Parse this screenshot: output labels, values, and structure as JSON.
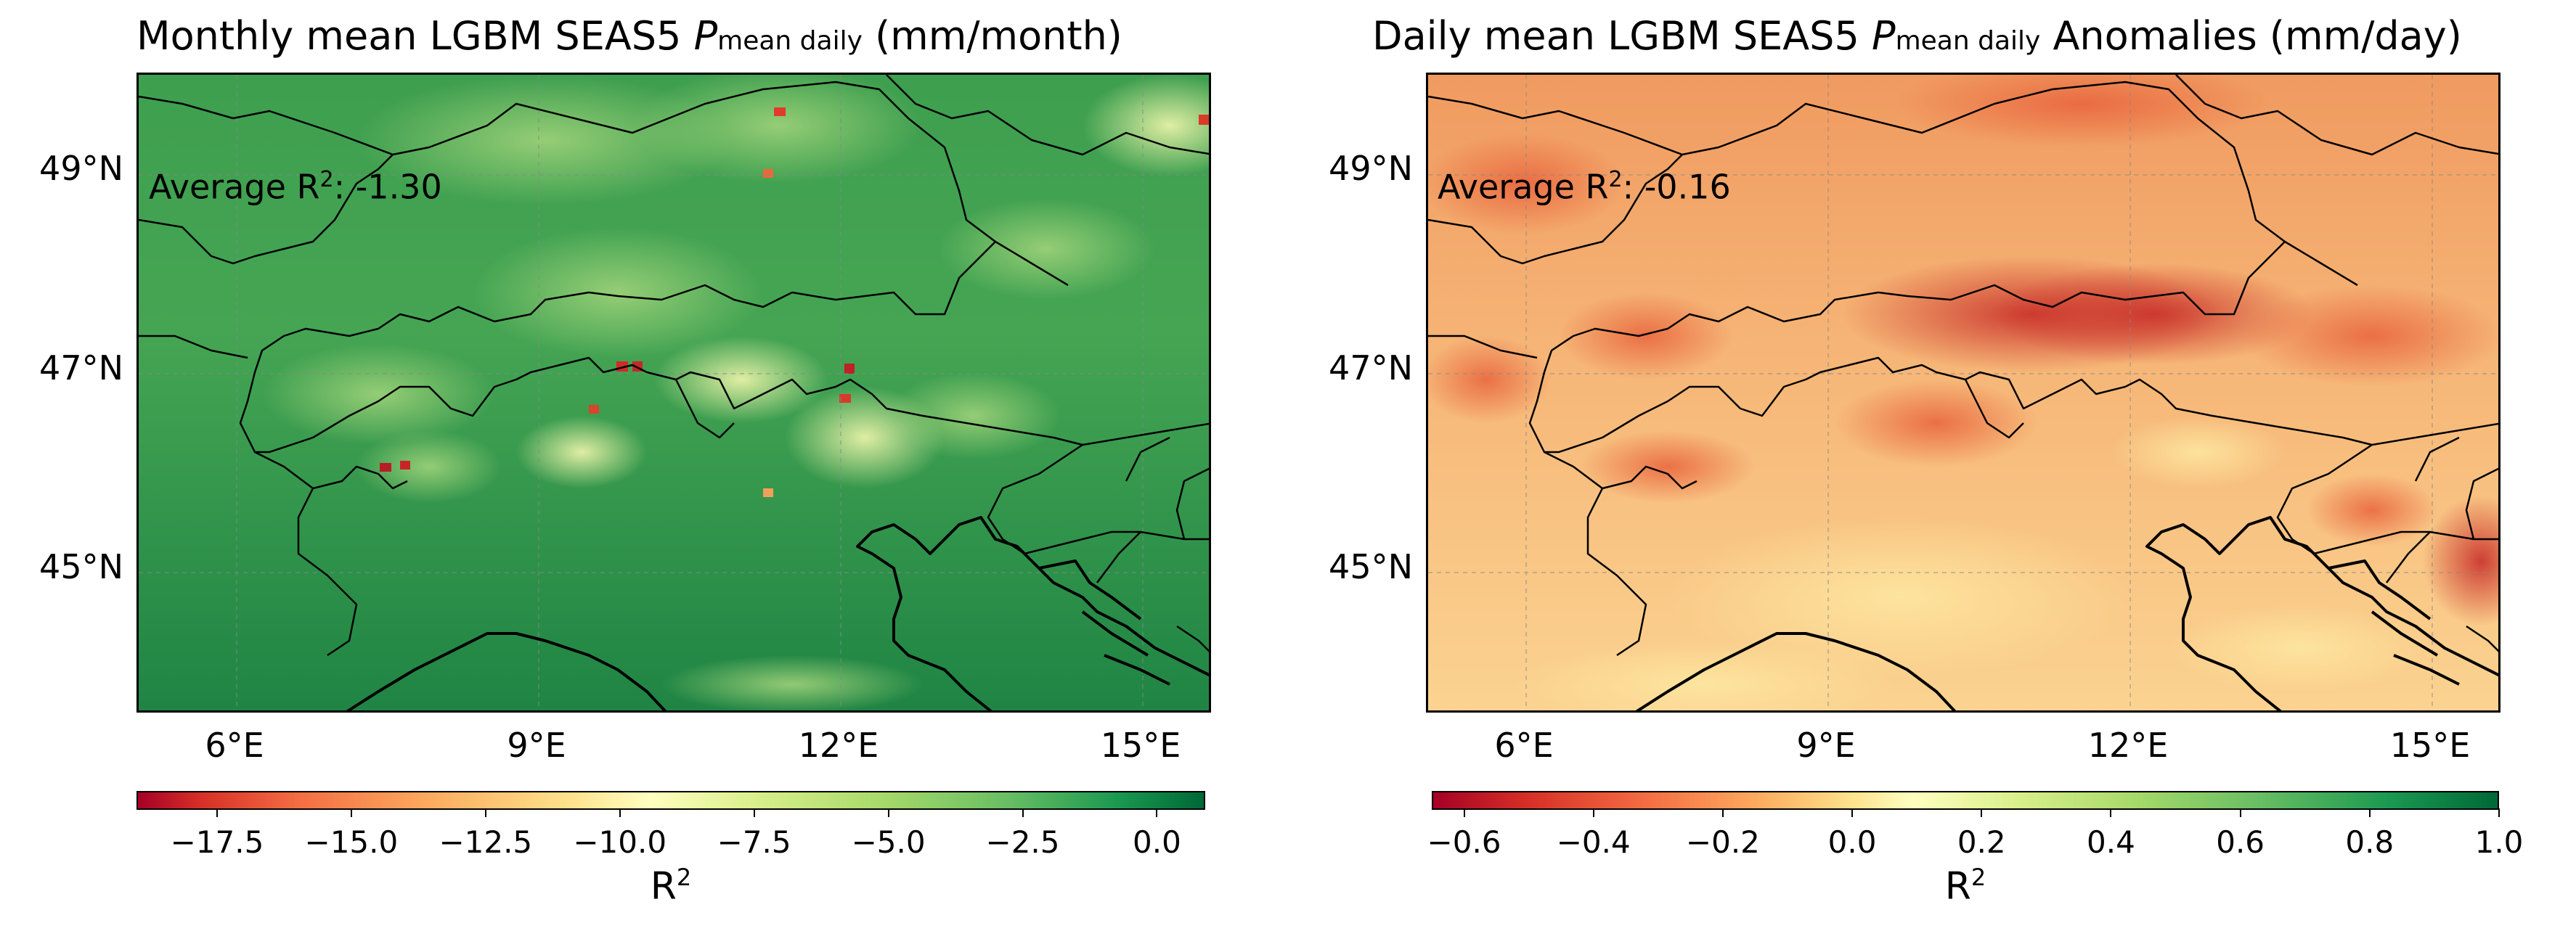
{
  "panels": [
    {
      "title_prefix": "Monthly mean LGBM SEAS5 ",
      "title_var": "P",
      "title_sub": "mean daily",
      "title_suffix": " (mm/month)",
      "avg_prefix": "Average R",
      "avg_sup": "2",
      "avg_value": ": -1.30",
      "colorbar": {
        "label": "R",
        "label_sup": "2",
        "min": -19.0,
        "max": 0.9,
        "ticks": [
          "−17.5",
          "−15.0",
          "−12.5",
          "−10.0",
          "−7.5",
          "−5.0",
          "−2.5",
          "0.0"
        ],
        "tick_values": [
          -17.5,
          -15.0,
          -12.5,
          -10.0,
          -7.5,
          -5.0,
          -2.5,
          0.0
        ],
        "colormap": "RdYlGn"
      }
    },
    {
      "title_prefix": "Daily mean LGBM SEAS5 ",
      "title_var": "P",
      "title_sub": "mean daily",
      "title_suffix": " Anomalies (mm/day)",
      "avg_prefix": "Average R",
      "avg_sup": "2",
      "avg_value": ": -0.16",
      "colorbar": {
        "label": "R",
        "label_sup": "2",
        "min": -0.65,
        "max": 1.0,
        "ticks": [
          "−0.6",
          "−0.4",
          "−0.2",
          "0.0",
          "0.2",
          "0.4",
          "0.6",
          "0.8",
          "1.0"
        ],
        "tick_values": [
          -0.6,
          -0.4,
          -0.2,
          0.0,
          0.2,
          0.4,
          0.6,
          0.8,
          1.0
        ],
        "colormap": "RdYlGn"
      }
    }
  ],
  "lat_ticks": [
    "49°N",
    "47°N",
    "45°N"
  ],
  "lon_ticks": [
    "6°E",
    "9°E",
    "12°E",
    "15°E"
  ],
  "colors": {
    "green_dark": "#1a7a3e",
    "green_mid": "#4da84f",
    "yellow": "#fbe99a",
    "orange": "#f4a762",
    "red_dark": "#a50026",
    "border": "#000000"
  }
}
